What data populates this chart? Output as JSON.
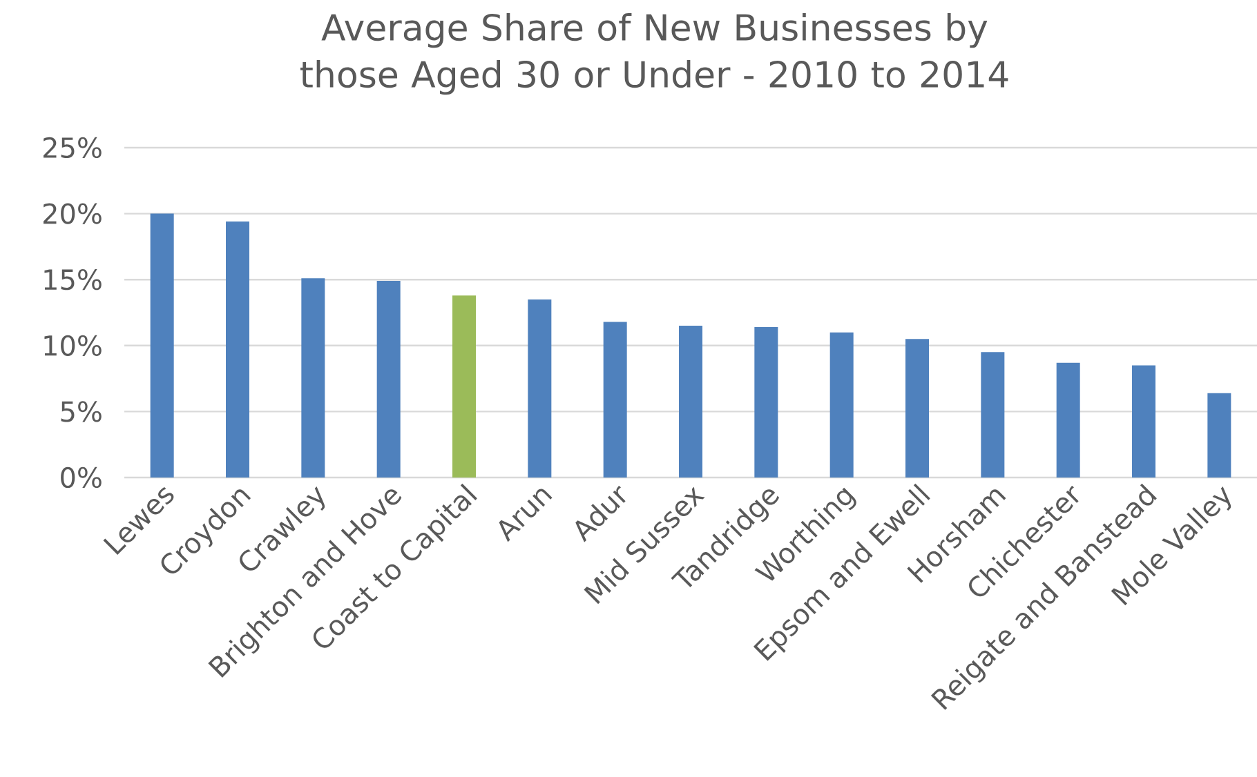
{
  "chart_data": {
    "type": "bar",
    "title": "Average Share of New Businesses by those Aged 30 or Under - 2010 to 2014",
    "categories": [
      "Lewes",
      "Croydon",
      "Crawley",
      "Brighton and Hove",
      "Coast to Capital",
      "Arun",
      "Adur",
      "Mid Sussex",
      "Tandridge",
      "Worthing",
      "Epsom and Ewell",
      "Horsham",
      "Chichester",
      "Reigate and Banstead",
      "Mole Valley"
    ],
    "values": [
      20.0,
      19.4,
      15.1,
      14.9,
      13.8,
      13.5,
      11.8,
      11.5,
      11.4,
      11.0,
      10.5,
      9.5,
      8.7,
      8.5,
      6.4
    ],
    "colors": [
      "#4f81bd",
      "#4f81bd",
      "#4f81bd",
      "#4f81bd",
      "#9bbb59",
      "#4f81bd",
      "#4f81bd",
      "#4f81bd",
      "#4f81bd",
      "#4f81bd",
      "#4f81bd",
      "#4f81bd",
      "#4f81bd",
      "#4f81bd",
      "#4f81bd"
    ],
    "ylim": [
      0,
      25
    ],
    "yticks": [
      {
        "value": 0,
        "label": "0%"
      },
      {
        "value": 5,
        "label": "5%"
      },
      {
        "value": 10,
        "label": "10%"
      },
      {
        "value": 15,
        "label": "15%"
      },
      {
        "value": 20,
        "label": "20%"
      },
      {
        "value": 25,
        "label": "25%"
      }
    ],
    "grid": "y"
  }
}
